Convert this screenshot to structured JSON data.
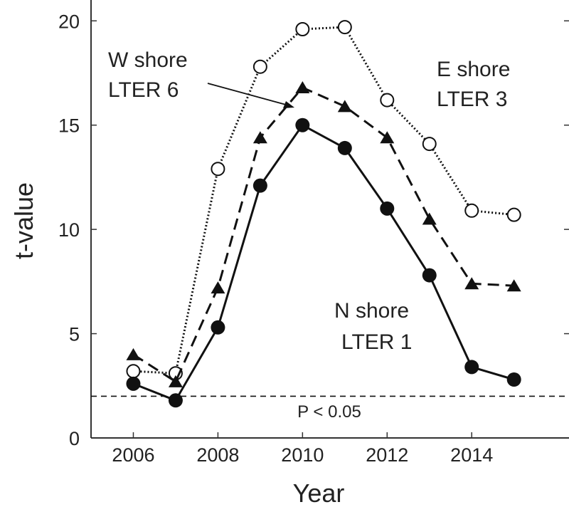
{
  "chart_data": {
    "type": "line",
    "xlabel": "Year",
    "ylabel": "t-value",
    "xlim": [
      2005,
      2016.3
    ],
    "ylim": [
      0,
      21
    ],
    "x_ticks": [
      2006,
      2008,
      2010,
      2012,
      2014
    ],
    "y_ticks": [
      0,
      5,
      10,
      15,
      20
    ],
    "x": [
      2006,
      2007,
      2008,
      2009,
      2010,
      2011,
      2012,
      2013,
      2014,
      2015
    ],
    "series": [
      {
        "line_style": "dotted",
        "marker": "open-circle",
        "values": [
          3.2,
          3.1,
          12.9,
          17.8,
          19.6,
          19.7,
          16.2,
          14.1,
          10.9,
          10.7
        ]
      },
      {
        "line_style": "dashed",
        "marker": "filled-triangle",
        "values": [
          4.0,
          2.7,
          7.2,
          14.4,
          16.8,
          15.9,
          14.4,
          10.5,
          7.4,
          7.3
        ]
      },
      {
        "line_style": "solid",
        "marker": "filled-circle",
        "values": [
          2.6,
          1.8,
          5.3,
          12.1,
          15.0,
          13.9,
          11.0,
          7.8,
          3.4,
          2.8
        ]
      }
    ],
    "reference_line": {
      "y": 2,
      "style": "dashed",
      "label": "P < 0.05"
    },
    "annotations": [
      {
        "line1": "W shore",
        "line2": "LTER 6"
      },
      {
        "line1": "E shore",
        "line2": "LTER 3"
      },
      {
        "line1": "N shore",
        "line2": "LTER 1"
      }
    ],
    "grid": false,
    "colors": {
      "line": "#111111",
      "axis": "#333333"
    }
  }
}
